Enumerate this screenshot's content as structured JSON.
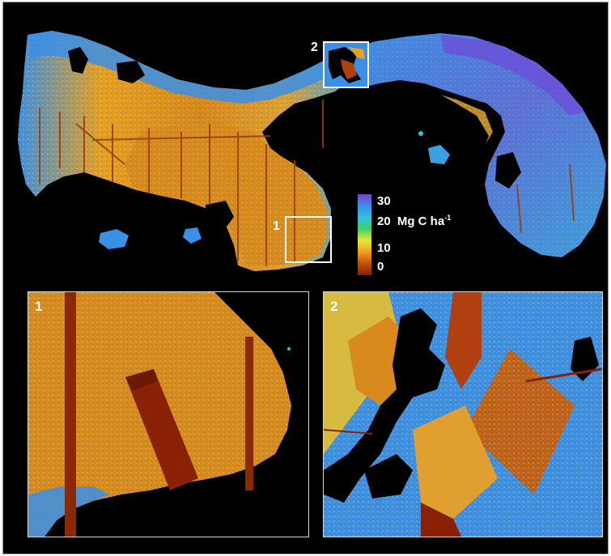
{
  "legend": {
    "ticks": [
      "30",
      "20",
      "10",
      "0"
    ],
    "unit_text": "Mg C ha",
    "unit_superscript": "-1",
    "gradient_colors": [
      "#7a3fd0",
      "#3a8fe8",
      "#2ec2e0",
      "#3ecf6a",
      "#e8e830",
      "#f0a020",
      "#c05010",
      "#8a1a05"
    ]
  },
  "map_markers": [
    {
      "label": "1"
    },
    {
      "label": "2"
    }
  ],
  "insets": [
    {
      "label": "1"
    },
    {
      "label": "2"
    }
  ],
  "colors": {
    "background": "#000000",
    "low_carbon": "#b0440c",
    "mid_carbon": "#e8a020",
    "high_carbon": "#3a8fe8",
    "very_high_carbon": "#6a4fd8"
  }
}
